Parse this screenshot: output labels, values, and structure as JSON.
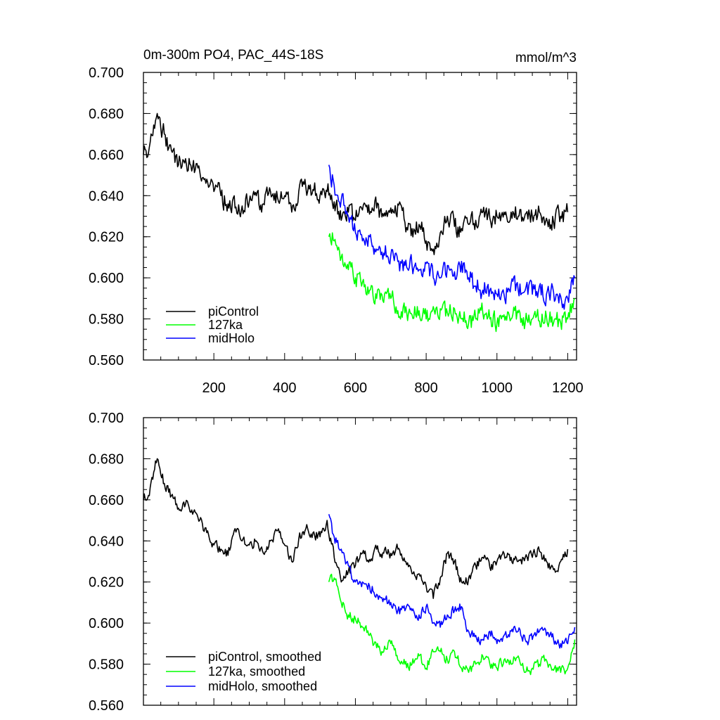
{
  "figure": {
    "title": "0m-300m PO4, PAC_44S-18S",
    "units": "mmol/m^3"
  },
  "chart_data": [
    {
      "type": "line",
      "title": "0m-300m PO4, PAC_44S-18S",
      "units": "mmol/m^3",
      "xlim": [
        1,
        1225
      ],
      "ylim": [
        0.56,
        0.7
      ],
      "xticks": [
        200,
        400,
        600,
        800,
        1000,
        1200
      ],
      "xtick_labels": [
        "200",
        "400",
        "600",
        "800",
        "1000",
        "1200"
      ],
      "yticks": [
        0.56,
        0.58,
        0.6,
        0.62,
        0.64,
        0.66,
        0.68,
        0.7
      ],
      "ytick_labels": [
        "0.560",
        "0.580",
        "0.600",
        "0.620",
        "0.640",
        "0.660",
        "0.680",
        "0.700"
      ],
      "grid": false,
      "legend": "bottom-left",
      "series": [
        {
          "name": "piControl",
          "color": "#000000",
          "x": [
            1,
            20,
            40,
            60,
            80,
            100,
            120,
            140,
            160,
            180,
            200,
            220,
            240,
            260,
            280,
            300,
            320,
            340,
            360,
            380,
            400,
            420,
            440,
            460,
            480,
            500,
            520,
            540,
            560,
            580,
            600,
            620,
            640,
            660,
            680,
            700,
            720,
            740,
            760,
            780,
            800,
            820,
            840,
            860,
            880,
            900,
            920,
            940,
            960,
            980,
            1000,
            1020,
            1040,
            1060,
            1080,
            1100,
            1120,
            1140,
            1160,
            1180,
            1200
          ],
          "y": [
            0.66,
            0.666,
            0.68,
            0.67,
            0.662,
            0.655,
            0.658,
            0.654,
            0.652,
            0.648,
            0.642,
            0.64,
            0.636,
            0.634,
            0.635,
            0.637,
            0.64,
            0.636,
            0.642,
            0.639,
            0.64,
            0.632,
            0.642,
            0.644,
            0.643,
            0.64,
            0.642,
            0.637,
            0.628,
            0.632,
            0.628,
            0.633,
            0.631,
            0.634,
            0.63,
            0.634,
            0.636,
            0.627,
            0.624,
            0.626,
            0.618,
            0.614,
            0.622,
            0.63,
            0.625,
            0.624,
            0.626,
            0.628,
            0.632,
            0.629,
            0.63,
            0.632,
            0.632,
            0.63,
            0.631,
            0.63,
            0.632,
            0.629,
            0.627,
            0.63,
            0.632
          ]
        },
        {
          "name": "127ka",
          "color": "#00ff00",
          "x": [
            525,
            540,
            560,
            580,
            600,
            620,
            640,
            660,
            680,
            700,
            720,
            740,
            760,
            780,
            800,
            820,
            840,
            860,
            880,
            900,
            920,
            940,
            960,
            980,
            1000,
            1020,
            1040,
            1060,
            1080,
            1100,
            1120,
            1140,
            1160,
            1180,
            1200,
            1220
          ],
          "y": [
            0.62,
            0.618,
            0.61,
            0.604,
            0.6,
            0.598,
            0.594,
            0.59,
            0.588,
            0.59,
            0.584,
            0.583,
            0.582,
            0.584,
            0.58,
            0.586,
            0.585,
            0.583,
            0.585,
            0.58,
            0.578,
            0.58,
            0.583,
            0.58,
            0.578,
            0.582,
            0.58,
            0.583,
            0.578,
            0.58,
            0.579,
            0.581,
            0.578,
            0.578,
            0.58,
            0.59
          ]
        },
        {
          "name": "midHolo",
          "color": "#0000ff",
          "x": [
            525,
            540,
            560,
            580,
            600,
            620,
            640,
            660,
            680,
            700,
            720,
            740,
            760,
            780,
            800,
            820,
            840,
            860,
            880,
            900,
            920,
            940,
            960,
            980,
            1000,
            1020,
            1040,
            1060,
            1080,
            1100,
            1120,
            1140,
            1160,
            1180,
            1200,
            1220
          ],
          "y": [
            0.655,
            0.645,
            0.638,
            0.63,
            0.622,
            0.618,
            0.62,
            0.614,
            0.612,
            0.611,
            0.608,
            0.606,
            0.606,
            0.604,
            0.607,
            0.6,
            0.6,
            0.606,
            0.603,
            0.608,
            0.6,
            0.596,
            0.594,
            0.594,
            0.592,
            0.592,
            0.597,
            0.594,
            0.594,
            0.592,
            0.596,
            0.592,
            0.593,
            0.591,
            0.59,
            0.6
          ]
        }
      ]
    },
    {
      "type": "line",
      "xlim": [
        1,
        1225
      ],
      "ylim": [
        0.56,
        0.7
      ],
      "yticks": [
        0.56,
        0.58,
        0.6,
        0.62,
        0.64,
        0.66,
        0.68,
        0.7
      ],
      "ytick_labels": [
        "0.560",
        "0.580",
        "0.600",
        "0.620",
        "0.640",
        "0.660",
        "0.680",
        "0.700"
      ],
      "grid": false,
      "legend": "bottom-left",
      "series": [
        {
          "name": "piControl, smoothed",
          "color": "#000000",
          "x": [
            1,
            20,
            40,
            60,
            80,
            100,
            120,
            140,
            160,
            180,
            200,
            220,
            240,
            260,
            280,
            300,
            320,
            340,
            360,
            380,
            400,
            420,
            440,
            460,
            480,
            500,
            520,
            540,
            560,
            580,
            600,
            620,
            640,
            660,
            680,
            700,
            720,
            740,
            760,
            780,
            800,
            820,
            840,
            860,
            880,
            900,
            920,
            940,
            960,
            980,
            1000,
            1020,
            1040,
            1060,
            1080,
            1100,
            1120,
            1140,
            1160,
            1180,
            1200
          ],
          "y": [
            0.66,
            0.666,
            0.68,
            0.668,
            0.662,
            0.656,
            0.658,
            0.653,
            0.65,
            0.644,
            0.638,
            0.636,
            0.633,
            0.646,
            0.64,
            0.638,
            0.64,
            0.634,
            0.64,
            0.645,
            0.638,
            0.63,
            0.641,
            0.646,
            0.644,
            0.642,
            0.65,
            0.632,
            0.62,
            0.625,
            0.628,
            0.634,
            0.631,
            0.636,
            0.634,
            0.634,
            0.636,
            0.63,
            0.624,
            0.624,
            0.618,
            0.612,
            0.622,
            0.634,
            0.63,
            0.62,
            0.622,
            0.628,
            0.632,
            0.627,
            0.63,
            0.634,
            0.632,
            0.63,
            0.632,
            0.632,
            0.635,
            0.63,
            0.626,
            0.63,
            0.636
          ]
        },
        {
          "name": "127ka, smoothed",
          "color": "#00ff00",
          "x": [
            525,
            540,
            560,
            580,
            600,
            620,
            640,
            660,
            680,
            700,
            720,
            740,
            760,
            780,
            800,
            820,
            840,
            860,
            880,
            900,
            920,
            940,
            960,
            980,
            1000,
            1020,
            1040,
            1060,
            1080,
            1100,
            1120,
            1140,
            1160,
            1180,
            1200,
            1220
          ],
          "y": [
            0.62,
            0.622,
            0.61,
            0.604,
            0.602,
            0.598,
            0.594,
            0.588,
            0.586,
            0.59,
            0.582,
            0.58,
            0.58,
            0.584,
            0.578,
            0.586,
            0.586,
            0.582,
            0.586,
            0.578,
            0.576,
            0.58,
            0.584,
            0.58,
            0.578,
            0.582,
            0.58,
            0.584,
            0.576,
            0.578,
            0.58,
            0.582,
            0.577,
            0.576,
            0.578,
            0.592
          ]
        },
        {
          "name": "midHolo, smoothed",
          "color": "#0000ff",
          "x": [
            525,
            540,
            560,
            580,
            600,
            620,
            640,
            660,
            680,
            700,
            720,
            740,
            760,
            780,
            800,
            820,
            840,
            860,
            880,
            900,
            920,
            940,
            960,
            980,
            1000,
            1020,
            1040,
            1060,
            1080,
            1100,
            1120,
            1140,
            1160,
            1180,
            1200,
            1220
          ],
          "y": [
            0.653,
            0.642,
            0.636,
            0.628,
            0.62,
            0.62,
            0.618,
            0.614,
            0.612,
            0.61,
            0.606,
            0.606,
            0.606,
            0.604,
            0.608,
            0.6,
            0.598,
            0.604,
            0.606,
            0.608,
            0.596,
            0.594,
            0.592,
            0.596,
            0.59,
            0.594,
            0.596,
            0.596,
            0.592,
            0.592,
            0.596,
            0.594,
            0.592,
            0.59,
            0.59,
            0.598
          ]
        }
      ]
    }
  ]
}
